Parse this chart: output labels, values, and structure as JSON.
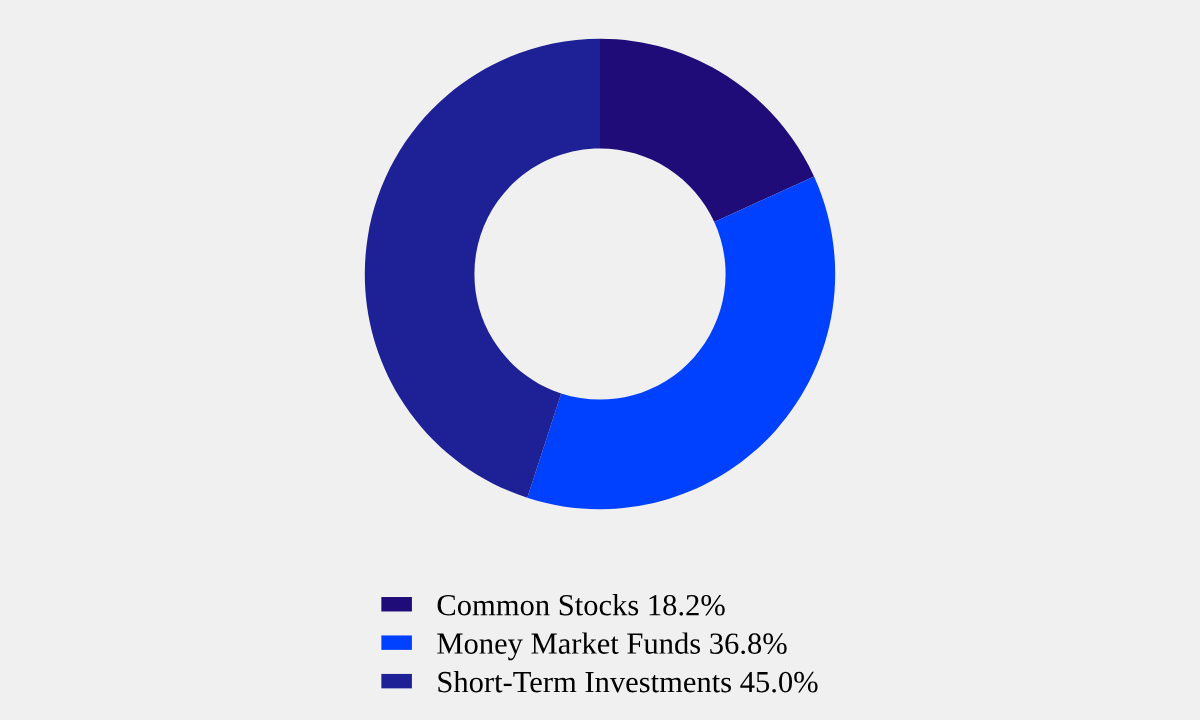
{
  "chart_data": {
    "type": "donut",
    "categories": [
      "Common Stocks",
      "Money Market Funds",
      "Short-Term Investments"
    ],
    "values": [
      18.2,
      36.8,
      45.0
    ],
    "value_labels": [
      "18.2%",
      "36.8%",
      "45.0%"
    ],
    "colors": [
      "#1f0c78",
      "#0040ff",
      "#1e2096"
    ],
    "legend": "bottom"
  }
}
